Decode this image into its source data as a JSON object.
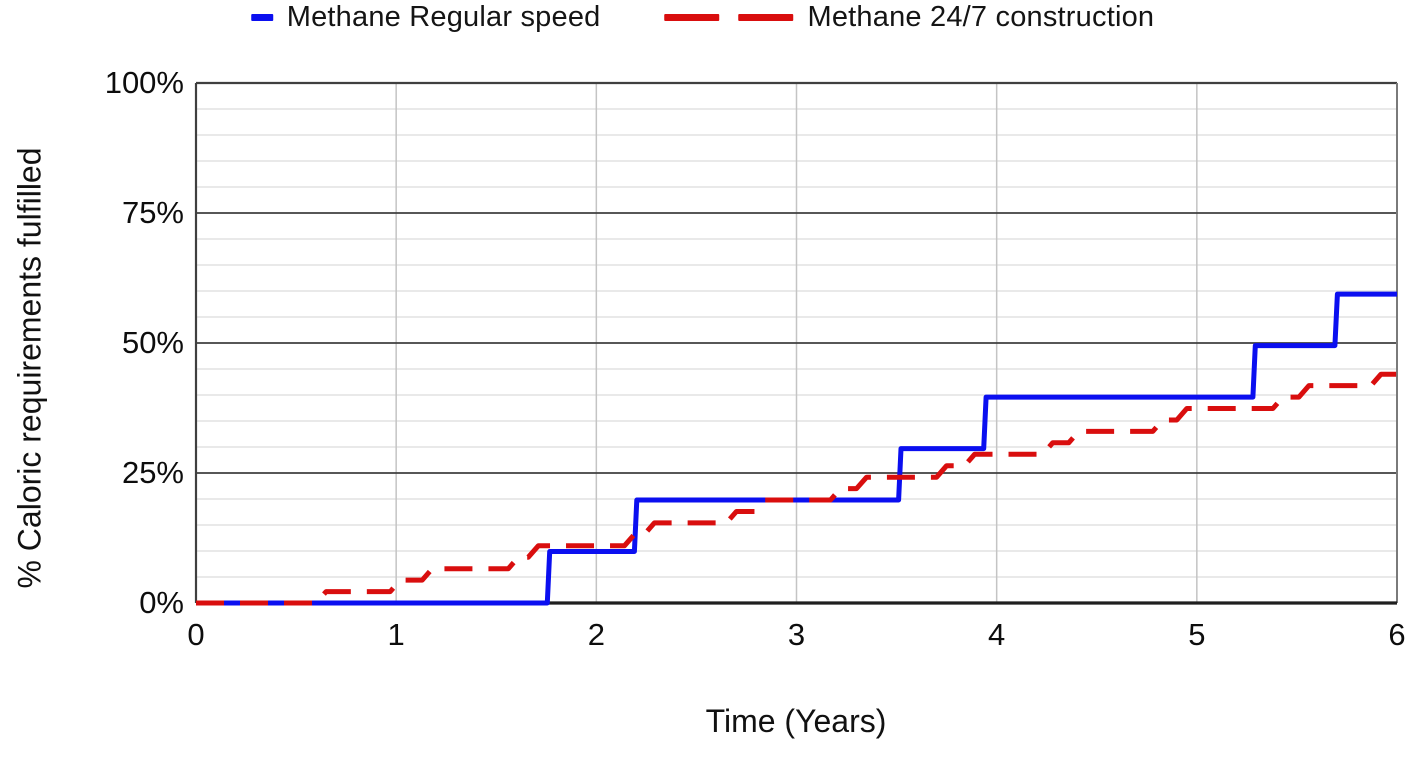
{
  "chart_data": {
    "type": "line",
    "subtype": "step",
    "title": "",
    "xlabel": "Time (Years)",
    "ylabel": "% Caloric requirements fulfilled",
    "xlim": [
      0,
      6
    ],
    "ylim": [
      0,
      100
    ],
    "x_ticks": [
      0,
      1,
      2,
      3,
      4,
      5,
      6
    ],
    "x_tick_labels": [
      "0",
      "1",
      "2",
      "3",
      "4",
      "5",
      "6"
    ],
    "y_ticks": [
      0,
      25,
      50,
      75,
      100
    ],
    "y_tick_labels": [
      "0%",
      "25%",
      "50%",
      "75%",
      "100%"
    ],
    "y_minor_step": 5,
    "grid": "horizontal major (25%) dark + horizontal minor (5%) light + vertical yearly light",
    "legend_position": "top-center",
    "axis_colors": {
      "major_grid": "#3f3f3f",
      "minor_grid": "#dcdcdc",
      "vertical_grid": "#c4c4c4",
      "axis_line": "#1f1f1f"
    },
    "series": [
      {
        "name": "Methane Regular speed",
        "color": "#0b0ff0",
        "style": "solid",
        "line_width": 5,
        "riser_slant": 0.012,
        "end_x": 6,
        "steps": [
          [
            0,
            0
          ],
          [
            1.755,
            9.9
          ],
          [
            2.19,
            19.8
          ],
          [
            3.51,
            29.7
          ],
          [
            3.935,
            39.6
          ],
          [
            5.28,
            49.5
          ],
          [
            5.69,
            59.4
          ]
        ],
        "final_value": 59.4
      },
      {
        "name": "Methane 24/7 construction",
        "color": "#d90e0e",
        "style": "dashed",
        "dash": [
          28,
          16
        ],
        "line_width": 5,
        "riser_slant": 0.05,
        "end_x": 6,
        "steps": [
          [
            0,
            0
          ],
          [
            0.6,
            2.2
          ],
          [
            0.97,
            4.4
          ],
          [
            1.13,
            6.6
          ],
          [
            1.56,
            8.8
          ],
          [
            1.66,
            11.0
          ],
          [
            2.14,
            13.2
          ],
          [
            2.24,
            15.4
          ],
          [
            2.65,
            17.6
          ],
          [
            2.79,
            19.8
          ],
          [
            3.17,
            22.0
          ],
          [
            3.3,
            24.2
          ],
          [
            3.7,
            26.4
          ],
          [
            3.84,
            28.6
          ],
          [
            4.23,
            30.8
          ],
          [
            4.36,
            33.0
          ],
          [
            4.78,
            35.2
          ],
          [
            4.9,
            37.4
          ],
          [
            5.38,
            39.6
          ],
          [
            5.51,
            41.8
          ],
          [
            5.87,
            44.0
          ]
        ],
        "final_value": 44.0
      }
    ]
  }
}
